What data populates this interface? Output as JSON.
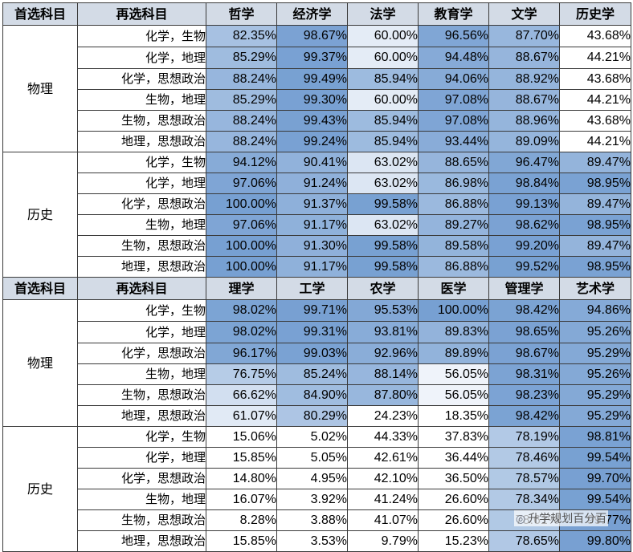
{
  "watermark": "升学规划百分百",
  "colors": {
    "header": "#d3dbe6",
    "light": "#ffffff",
    "dark": "#5f8fca"
  },
  "tables": [
    {
      "headers": [
        "首选科目",
        "再选科目",
        "哲学",
        "经济学",
        "法学",
        "教育学",
        "文学",
        "历史学"
      ],
      "groups": [
        {
          "name": "物理",
          "rows": [
            {
              "sub": "化学，生物",
              "values": [
                "82.35%",
                "98.67%",
                "60.00%",
                "96.56%",
                "87.70%",
                "43.68%"
              ]
            },
            {
              "sub": "化学，地理",
              "values": [
                "85.29%",
                "99.37%",
                "60.00%",
                "94.48%",
                "88.67%",
                "44.21%"
              ]
            },
            {
              "sub": "化学，思想政治",
              "values": [
                "88.24%",
                "99.49%",
                "85.94%",
                "94.06%",
                "88.92%",
                "43.68%"
              ]
            },
            {
              "sub": "生物，地理",
              "values": [
                "85.29%",
                "99.30%",
                "60.00%",
                "97.08%",
                "88.67%",
                "44.21%"
              ]
            },
            {
              "sub": "生物，思想政治",
              "values": [
                "88.24%",
                "99.43%",
                "85.94%",
                "97.08%",
                "88.96%",
                "43.68%"
              ]
            },
            {
              "sub": "地理，思想政治",
              "values": [
                "88.24%",
                "99.24%",
                "85.94%",
                "93.44%",
                "89.09%",
                "44.21%"
              ]
            }
          ]
        },
        {
          "name": "历史",
          "rows": [
            {
              "sub": "化学，生物",
              "values": [
                "94.12%",
                "90.41%",
                "63.02%",
                "88.65%",
                "96.47%",
                "89.47%"
              ]
            },
            {
              "sub": "化学，地理",
              "values": [
                "97.06%",
                "91.24%",
                "63.02%",
                "86.98%",
                "98.84%",
                "98.95%"
              ]
            },
            {
              "sub": "化学，思想政治",
              "values": [
                "100.00%",
                "91.37%",
                "99.58%",
                "86.88%",
                "99.13%",
                "89.47%"
              ]
            },
            {
              "sub": "生物，地理",
              "values": [
                "97.06%",
                "91.17%",
                "63.02%",
                "89.27%",
                "98.62%",
                "98.95%"
              ]
            },
            {
              "sub": "生物，思想政治",
              "values": [
                "100.00%",
                "91.30%",
                "99.58%",
                "89.58%",
                "99.20%",
                "89.47%"
              ]
            },
            {
              "sub": "地理，思想政治",
              "values": [
                "100.00%",
                "91.17%",
                "99.58%",
                "86.88%",
                "99.52%",
                "98.95%"
              ]
            }
          ]
        }
      ]
    },
    {
      "headers": [
        "首选科目",
        "再选科目",
        "理学",
        "工学",
        "农学",
        "医学",
        "管理学",
        "艺术学"
      ],
      "groups": [
        {
          "name": "物理",
          "rows": [
            {
              "sub": "化学，生物",
              "values": [
                "98.02%",
                "99.71%",
                "95.53%",
                "100.00%",
                "98.42%",
                "94.86%"
              ]
            },
            {
              "sub": "化学，地理",
              "values": [
                "98.02%",
                "99.31%",
                "93.81%",
                "89.83%",
                "98.65%",
                "95.26%"
              ]
            },
            {
              "sub": "化学，思想政治",
              "values": [
                "96.17%",
                "99.03%",
                "92.96%",
                "89.89%",
                "98.67%",
                "95.29%"
              ]
            },
            {
              "sub": "生物，地理",
              "values": [
                "76.75%",
                "85.24%",
                "88.14%",
                "56.05%",
                "98.31%",
                "95.26%"
              ]
            },
            {
              "sub": "生物，思想政治",
              "values": [
                "66.62%",
                "84.90%",
                "87.80%",
                "56.05%",
                "98.23%",
                "95.29%"
              ]
            },
            {
              "sub": "地理，思想政治",
              "values": [
                "61.07%",
                "80.29%",
                "24.23%",
                "18.35%",
                "98.42%",
                "95.29%"
              ]
            }
          ]
        },
        {
          "name": "历史",
          "rows": [
            {
              "sub": "化学，生物",
              "values": [
                "15.06%",
                "5.02%",
                "44.33%",
                "37.83%",
                "78.19%",
                "98.81%"
              ]
            },
            {
              "sub": "化学，地理",
              "values": [
                "15.85%",
                "5.05%",
                "42.61%",
                "36.44%",
                "78.46%",
                "99.54%"
              ]
            },
            {
              "sub": "化学，思想政治",
              "values": [
                "14.80%",
                "4.95%",
                "42.10%",
                "36.50%",
                "78.57%",
                "99.70%"
              ]
            },
            {
              "sub": "生物，地理",
              "values": [
                "16.07%",
                "3.92%",
                "41.24%",
                "26.60%",
                "78.34%",
                "99.54%"
              ]
            },
            {
              "sub": "生物，思想政治",
              "values": [
                "8.28%",
                "3.88%",
                "41.07%",
                "26.60%",
                "78.61%",
                "99.77%"
              ]
            },
            {
              "sub": "地理，思想政治",
              "values": [
                "15.85%",
                "3.53%",
                "9.79%",
                "15.23%",
                "78.65%",
                "99.80%"
              ]
            }
          ]
        }
      ]
    }
  ]
}
